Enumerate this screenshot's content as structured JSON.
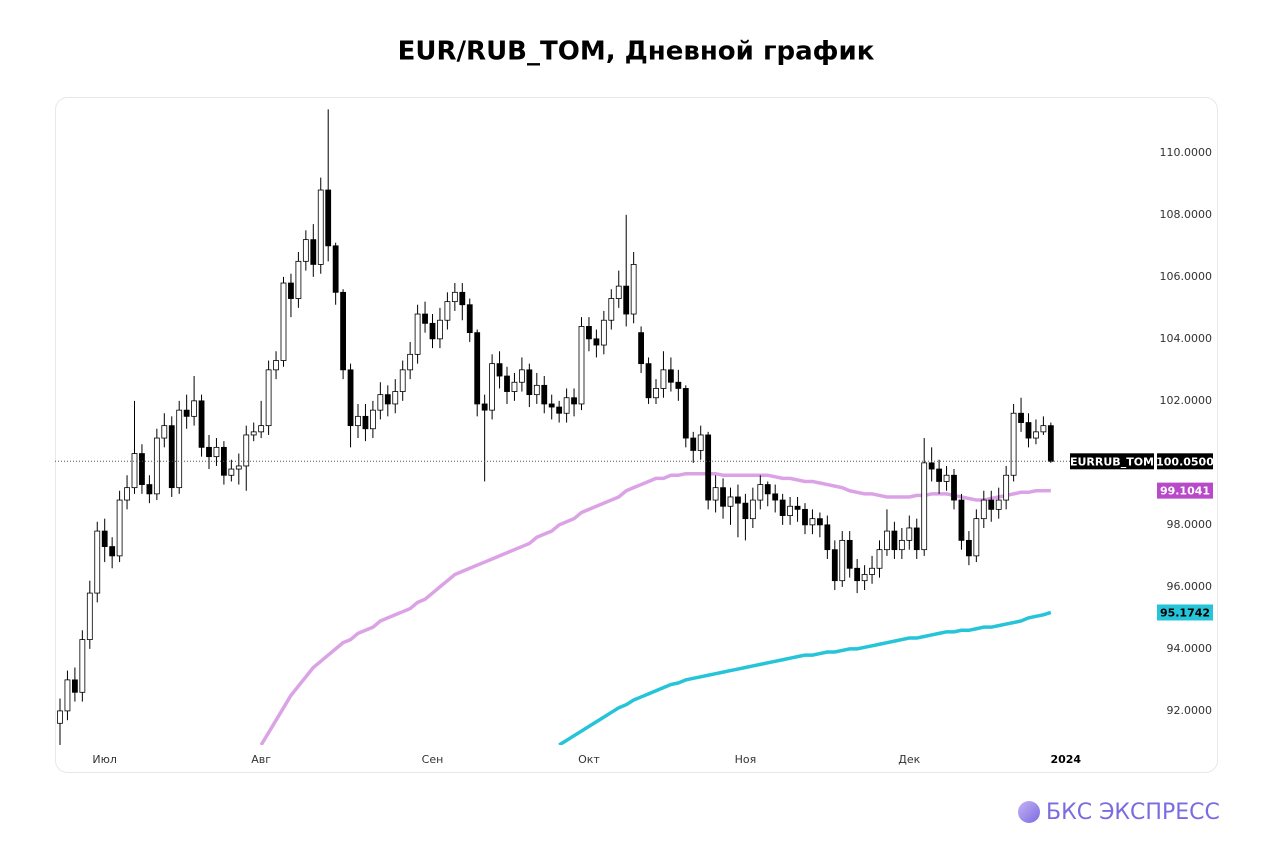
{
  "chart_data": {
    "type": "candlestick",
    "title": "EUR/RUB_TOM, Дневной график",
    "name": "EURRUB_TOM",
    "last_label": "100.0500",
    "up_color": "#ffffff",
    "down_color": "#000000",
    "categories": [
      null,
      null,
      null,
      null,
      null,
      null,
      "Июл",
      null,
      null,
      null,
      null,
      null,
      null,
      null,
      null,
      null,
      null,
      null,
      null,
      null,
      null,
      null,
      null,
      null,
      null,
      null,
      null,
      "Авг",
      null,
      null,
      null,
      null,
      null,
      null,
      null,
      null,
      null,
      null,
      null,
      null,
      null,
      null,
      null,
      null,
      null,
      null,
      null,
      null,
      null,
      null,
      "Сен",
      null,
      null,
      null,
      null,
      null,
      null,
      null,
      null,
      null,
      null,
      null,
      null,
      null,
      null,
      null,
      null,
      null,
      null,
      null,
      null,
      "Окт",
      null,
      null,
      null,
      null,
      null,
      null,
      null,
      null,
      null,
      null,
      null,
      null,
      null,
      null,
      null,
      null,
      null,
      null,
      null,
      null,
      "Ноя",
      null,
      null,
      null,
      null,
      null,
      null,
      null,
      null,
      null,
      null,
      null,
      null,
      null,
      null,
      null,
      null,
      null,
      null,
      null,
      null,
      null,
      "Дек",
      null,
      null,
      null,
      null,
      null,
      null,
      null,
      null,
      null,
      null,
      null,
      null,
      null,
      null,
      null,
      null,
      null,
      null,
      null,
      null,
      "2024"
    ],
    "open": [
      91.6,
      92.0,
      93.0,
      92.6,
      94.3,
      95.8,
      97.8,
      97.3,
      97.0,
      98.8,
      99.2,
      100.3,
      99.3,
      99.0,
      100.8,
      101.2,
      99.2,
      101.7,
      101.5,
      102.0,
      100.5,
      100.2,
      100.5,
      99.6,
      99.8,
      99.9,
      100.9,
      101.0,
      101.2,
      103.0,
      103.3,
      105.8,
      105.3,
      106.5,
      107.2,
      106.4,
      108.8,
      107.0,
      105.5,
      103.0,
      101.2,
      101.5,
      101.1,
      101.7,
      102.2,
      101.9,
      102.3,
      103.0,
      103.5,
      104.8,
      104.5,
      104.0,
      104.6,
      105.2,
      105.5,
      105.1,
      104.2,
      101.9,
      101.7,
      103.2,
      102.8,
      102.3,
      102.6,
      103.0,
      102.2,
      102.5,
      101.9,
      101.8,
      101.6,
      102.1,
      101.9,
      104.4,
      104.0,
      103.8,
      104.6,
      105.3,
      105.7,
      104.8,
      104.2,
      103.2,
      102.1,
      102.4,
      103.0,
      102.6,
      102.4,
      100.8,
      100.4,
      100.9,
      98.8,
      99.2,
      98.6,
      98.9,
      98.7,
      98.2,
      98.8,
      99.3,
      99.0,
      98.8,
      98.3,
      98.6,
      98.5,
      98.0,
      98.2,
      98.0,
      97.2,
      96.2,
      97.5,
      96.6,
      96.2,
      96.4,
      96.6,
      97.2,
      97.8,
      97.2,
      97.5,
      97.9,
      97.2,
      100.0,
      99.8,
      99.4,
      99.6,
      98.8,
      97.5,
      97.0,
      98.2,
      98.8,
      98.5,
      98.8,
      99.6,
      101.6,
      101.3,
      100.8,
      101.0,
      101.2,
      null,
      null
    ],
    "high": [
      92.4,
      93.3,
      93.4,
      94.6,
      96.2,
      98.1,
      98.2,
      97.6,
      99.1,
      99.6,
      102.0,
      100.6,
      99.6,
      101.1,
      101.6,
      101.5,
      102.0,
      102.2,
      102.8,
      102.2,
      100.9,
      100.8,
      100.7,
      100.1,
      100.3,
      101.2,
      101.3,
      102.0,
      103.3,
      103.6,
      106.0,
      106.1,
      106.8,
      107.5,
      107.7,
      109.2,
      111.4,
      107.1,
      105.6,
      103.2,
      101.9,
      101.9,
      102.0,
      102.6,
      102.5,
      102.7,
      103.3,
      103.9,
      105.1,
      105.2,
      104.8,
      105.0,
      105.5,
      105.8,
      105.8,
      105.3,
      104.3,
      102.2,
      103.5,
      103.6,
      103.1,
      102.9,
      103.4,
      103.2,
      102.9,
      102.8,
      102.2,
      102.0,
      102.4,
      102.4,
      104.7,
      104.7,
      104.3,
      104.9,
      105.6,
      106.2,
      108.0,
      106.8,
      104.4,
      103.4,
      102.7,
      103.6,
      103.4,
      103.0,
      102.5,
      101.0,
      101.2,
      101.0,
      99.6,
      99.5,
      99.2,
      99.3,
      99.0,
      99.2,
      99.6,
      99.4,
      99.3,
      99.0,
      98.9,
      98.9,
      98.7,
      98.5,
      98.4,
      98.3,
      97.5,
      97.8,
      97.8,
      96.9,
      96.7,
      97.0,
      97.5,
      98.5,
      98.1,
      97.9,
      98.3,
      98.2,
      100.8,
      100.5,
      100.1,
      99.9,
      99.8,
      99.0,
      97.8,
      98.5,
      99.1,
      99.1,
      99.2,
      99.9,
      101.9,
      102.1,
      101.6,
      101.4,
      101.5,
      101.3,
      null,
      null
    ],
    "low": [
      90.8,
      91.7,
      92.3,
      92.3,
      94.0,
      95.5,
      96.8,
      96.6,
      96.8,
      98.5,
      99.0,
      99.0,
      98.7,
      98.8,
      100.5,
      98.9,
      99.0,
      101.1,
      101.2,
      100.2,
      99.8,
      99.9,
      99.3,
      99.4,
      99.3,
      99.1,
      100.7,
      100.8,
      100.9,
      102.7,
      103.1,
      104.7,
      105.0,
      106.2,
      106.0,
      106.1,
      106.5,
      105.1,
      102.7,
      100.5,
      100.8,
      100.7,
      100.8,
      101.4,
      101.5,
      101.6,
      102.0,
      102.7,
      103.2,
      104.2,
      103.7,
      103.7,
      104.3,
      104.9,
      104.6,
      103.9,
      101.5,
      99.4,
      101.4,
      102.4,
      101.9,
      102.0,
      102.3,
      101.8,
      101.9,
      101.6,
      101.4,
      101.3,
      101.3,
      101.5,
      101.7,
      103.6,
      103.4,
      103.5,
      104.3,
      105.0,
      104.4,
      104.5,
      102.9,
      101.9,
      101.9,
      102.1,
      102.3,
      102.0,
      100.5,
      100.0,
      100.1,
      98.5,
      98.4,
      98.2,
      98.0,
      97.6,
      97.5,
      97.9,
      98.5,
      98.6,
      98.4,
      98.0,
      98.0,
      98.1,
      97.7,
      97.7,
      97.6,
      96.9,
      95.9,
      96.0,
      96.3,
      95.8,
      95.9,
      96.1,
      96.3,
      97.0,
      96.9,
      96.9,
      97.2,
      96.9,
      97.0,
      99.4,
      99.0,
      99.1,
      98.5,
      97.2,
      96.7,
      96.8,
      97.9,
      98.1,
      98.2,
      98.5,
      99.4,
      101.0,
      100.5,
      100.6,
      100.9,
      100.0,
      null,
      null
    ],
    "close": [
      92.0,
      93.0,
      92.6,
      94.3,
      95.8,
      97.8,
      97.3,
      97.0,
      98.8,
      99.2,
      100.3,
      99.3,
      99.0,
      100.8,
      101.2,
      99.2,
      101.7,
      101.5,
      102.0,
      100.5,
      100.2,
      100.5,
      99.6,
      99.8,
      99.9,
      100.9,
      101.0,
      101.2,
      103.0,
      103.3,
      105.8,
      105.3,
      106.5,
      107.2,
      106.4,
      108.8,
      107.0,
      105.5,
      103.0,
      101.2,
      101.5,
      101.1,
      101.7,
      102.2,
      101.9,
      102.3,
      103.0,
      103.5,
      104.8,
      104.5,
      104.0,
      104.6,
      105.2,
      105.5,
      105.1,
      104.2,
      101.9,
      101.7,
      103.2,
      102.8,
      102.3,
      102.6,
      103.0,
      102.2,
      102.5,
      101.9,
      101.8,
      101.6,
      102.1,
      101.9,
      104.4,
      104.0,
      103.8,
      104.6,
      105.3,
      105.7,
      104.8,
      106.4,
      103.2,
      102.1,
      102.4,
      103.0,
      102.6,
      102.4,
      100.8,
      100.4,
      100.9,
      98.8,
      99.2,
      98.6,
      98.9,
      98.7,
      98.2,
      98.8,
      99.3,
      99.0,
      98.8,
      98.3,
      98.6,
      98.5,
      98.0,
      98.2,
      98.0,
      97.2,
      96.2,
      97.5,
      96.6,
      96.2,
      96.4,
      96.6,
      97.2,
      97.8,
      97.2,
      97.5,
      97.9,
      97.2,
      100.0,
      99.8,
      99.4,
      99.6,
      98.8,
      97.5,
      97.0,
      98.2,
      98.8,
      98.5,
      98.8,
      99.6,
      101.6,
      101.3,
      100.8,
      101.0,
      101.2,
      100.05,
      null,
      null
    ],
    "series": [
      {
        "color": "#dba3e6",
        "label_color": "#b849c9",
        "last_label": "99.1041",
        "values": [
          null,
          null,
          null,
          null,
          null,
          null,
          null,
          null,
          null,
          null,
          null,
          null,
          null,
          null,
          null,
          null,
          null,
          null,
          null,
          null,
          null,
          null,
          null,
          null,
          null,
          null,
          null,
          90.9,
          91.3,
          91.7,
          92.1,
          92.5,
          92.8,
          93.1,
          93.4,
          93.6,
          93.8,
          94.0,
          94.2,
          94.3,
          94.5,
          94.6,
          94.7,
          94.9,
          95.0,
          95.1,
          95.2,
          95.3,
          95.5,
          95.6,
          95.8,
          96.0,
          96.2,
          96.4,
          96.5,
          96.6,
          96.7,
          96.8,
          96.9,
          97.0,
          97.1,
          97.2,
          97.3,
          97.4,
          97.6,
          97.7,
          97.8,
          98.0,
          98.1,
          98.2,
          98.4,
          98.5,
          98.6,
          98.7,
          98.8,
          98.9,
          99.1,
          99.2,
          99.3,
          99.4,
          99.5,
          99.5,
          99.6,
          99.6,
          99.65,
          99.65,
          99.65,
          99.65,
          99.65,
          99.6,
          99.6,
          99.6,
          99.6,
          99.6,
          99.6,
          99.6,
          99.55,
          99.5,
          99.5,
          99.45,
          99.4,
          99.4,
          99.35,
          99.3,
          99.25,
          99.2,
          99.1,
          99.05,
          99.0,
          99.0,
          98.95,
          98.9,
          98.9,
          98.9,
          98.9,
          98.95,
          98.95,
          99.0,
          99.0,
          99.0,
          98.95,
          98.9,
          98.85,
          98.8,
          98.8,
          98.85,
          98.9,
          98.95,
          99.0,
          99.05,
          99.05,
          99.1,
          99.1,
          99.1041,
          null,
          null
        ]
      },
      {
        "color": "#26c4d8",
        "label_color": "#26c4d8",
        "last_label": "95.1742",
        "values": [
          null,
          null,
          null,
          null,
          null,
          null,
          null,
          null,
          null,
          null,
          null,
          null,
          null,
          null,
          null,
          null,
          null,
          null,
          null,
          null,
          null,
          null,
          null,
          null,
          null,
          null,
          null,
          null,
          null,
          null,
          null,
          null,
          null,
          null,
          null,
          null,
          null,
          null,
          null,
          null,
          null,
          null,
          null,
          null,
          null,
          null,
          null,
          null,
          null,
          null,
          null,
          null,
          null,
          null,
          null,
          null,
          null,
          null,
          null,
          null,
          null,
          null,
          null,
          null,
          null,
          null,
          null,
          90.9,
          91.05,
          91.2,
          91.35,
          91.5,
          91.65,
          91.8,
          91.95,
          92.1,
          92.2,
          92.35,
          92.45,
          92.55,
          92.65,
          92.75,
          92.85,
          92.9,
          93.0,
          93.05,
          93.1,
          93.15,
          93.2,
          93.25,
          93.3,
          93.35,
          93.4,
          93.45,
          93.5,
          93.55,
          93.6,
          93.65,
          93.7,
          93.75,
          93.8,
          93.8,
          93.85,
          93.9,
          93.9,
          93.95,
          94.0,
          94.0,
          94.05,
          94.1,
          94.15,
          94.2,
          94.25,
          94.3,
          94.35,
          94.35,
          94.4,
          94.45,
          94.5,
          94.55,
          94.55,
          94.6,
          94.6,
          94.65,
          94.7,
          94.7,
          94.75,
          94.8,
          94.85,
          94.9,
          95.0,
          95.05,
          95.1,
          95.1742,
          null,
          null
        ]
      }
    ],
    "ylim": [
      90.9,
      111.8
    ],
    "yticks": [
      {
        "value": 92,
        "label": "92.0000"
      },
      {
        "value": 94,
        "label": "94.0000"
      },
      {
        "value": 96,
        "label": "96.0000"
      },
      {
        "value": 98,
        "label": "98.0000"
      },
      {
        "value": 100,
        "label": "100.0000"
      },
      {
        "value": 102,
        "label": "102.0000"
      },
      {
        "value": 104,
        "label": "104.0000"
      },
      {
        "value": 106,
        "label": "106.0000"
      },
      {
        "value": 108,
        "label": "108.0000"
      },
      {
        "value": 110,
        "label": "110.0000"
      }
    ],
    "grid": false
  },
  "brand": "БКС ЭКСПРЕСС"
}
